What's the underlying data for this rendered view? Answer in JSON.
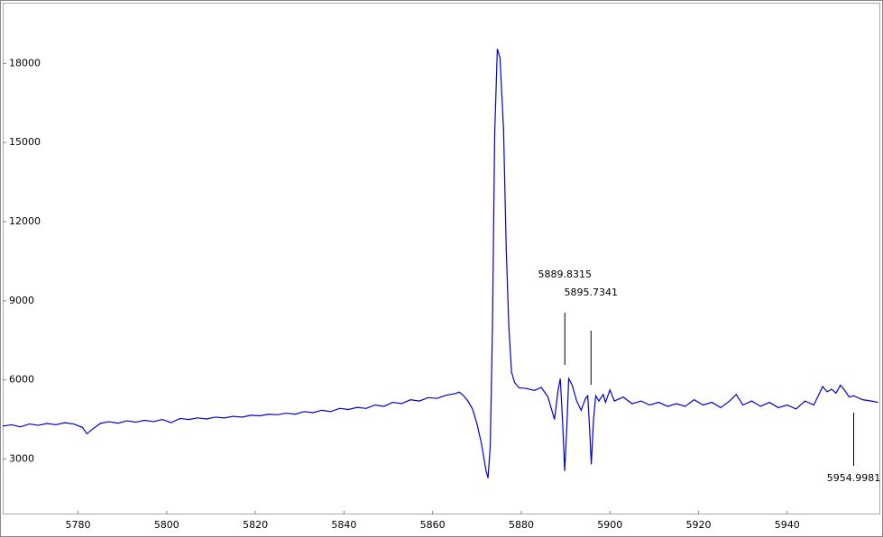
{
  "chart_data": {
    "type": "line",
    "x": [
      5763,
      5765,
      5767,
      5769,
      5771,
      5773,
      5775,
      5777,
      5779,
      5781,
      5782,
      5783,
      5785,
      5787,
      5789,
      5791,
      5793,
      5795,
      5797,
      5799,
      5801,
      5803,
      5805,
      5807,
      5809,
      5811,
      5813,
      5815,
      5817,
      5819,
      5821,
      5823,
      5825,
      5827,
      5829,
      5831,
      5833,
      5835,
      5837,
      5839,
      5841,
      5843,
      5845,
      5847,
      5849,
      5851,
      5853,
      5855,
      5857,
      5859,
      5861,
      5863,
      5865,
      5866,
      5867,
      5868,
      5869,
      5870,
      5871,
      5872,
      5872.5,
      5873,
      5873.5,
      5874,
      5874.6,
      5875.2,
      5876,
      5876.6,
      5877.2,
      5877.8,
      5878.5,
      5879.5,
      5881,
      5883,
      5884.5,
      5886,
      5887.5,
      5888.3,
      5888.8,
      5889.3,
      5889.8,
      5890.3,
      5890.7,
      5891.5,
      5892.5,
      5893.5,
      5894.5,
      5895,
      5895.4,
      5895.8,
      5896.3,
      5896.8,
      5897.5,
      5898.5,
      5899,
      5900,
      5901,
      5903,
      5905,
      5907,
      5909,
      5911,
      5913,
      5915,
      5917,
      5919,
      5921,
      5923,
      5925,
      5927,
      5928.5,
      5930,
      5932,
      5934,
      5936,
      5938,
      5940,
      5942,
      5944,
      5946,
      5948,
      5949,
      5950,
      5951,
      5952,
      5953,
      5954,
      5955,
      5957,
      5959,
      5960.5
    ],
    "series": [
      {
        "color": "#0000cc",
        "values": [
          4250,
          4300,
          4220,
          4330,
          4280,
          4350,
          4300,
          4380,
          4330,
          4200,
          3960,
          4100,
          4350,
          4420,
          4360,
          4450,
          4400,
          4470,
          4420,
          4500,
          4380,
          4540,
          4500,
          4560,
          4520,
          4590,
          4560,
          4620,
          4590,
          4660,
          4640,
          4700,
          4680,
          4740,
          4700,
          4800,
          4760,
          4850,
          4800,
          4920,
          4880,
          4960,
          4920,
          5050,
          5000,
          5150,
          5100,
          5250,
          5200,
          5330,
          5300,
          5420,
          5480,
          5540,
          5400,
          5190,
          4900,
          4340,
          3600,
          2600,
          2280,
          3500,
          8000,
          15300,
          18550,
          18200,
          15500,
          11000,
          8000,
          6300,
          5900,
          5700,
          5680,
          5600,
          5720,
          5360,
          4500,
          5600,
          6050,
          4500,
          2550,
          4300,
          6050,
          5800,
          5200,
          4850,
          5300,
          5400,
          4200,
          2800,
          4500,
          5400,
          5200,
          5450,
          5150,
          5620,
          5200,
          5350,
          5100,
          5200,
          5050,
          5150,
          5000,
          5100,
          5000,
          5250,
          5050,
          5150,
          4950,
          5200,
          5450,
          5050,
          5200,
          5000,
          5150,
          4950,
          5050,
          4900,
          5200,
          5050,
          5750,
          5550,
          5650,
          5500,
          5800,
          5600,
          5350,
          5400,
          5250,
          5200,
          5150
        ]
      }
    ],
    "annotations": [
      5889.8315,
      5895.7341,
      5954.9981
    ],
    "xlim": [
      5763,
      5961
    ],
    "ylim": [
      900,
      20300
    ],
    "xticks": [
      5780,
      5800,
      5820,
      5840,
      5860,
      5880,
      5900,
      5920,
      5940
    ],
    "yticks": [
      3000,
      6000,
      9000,
      12000,
      15000,
      18000
    ]
  }
}
